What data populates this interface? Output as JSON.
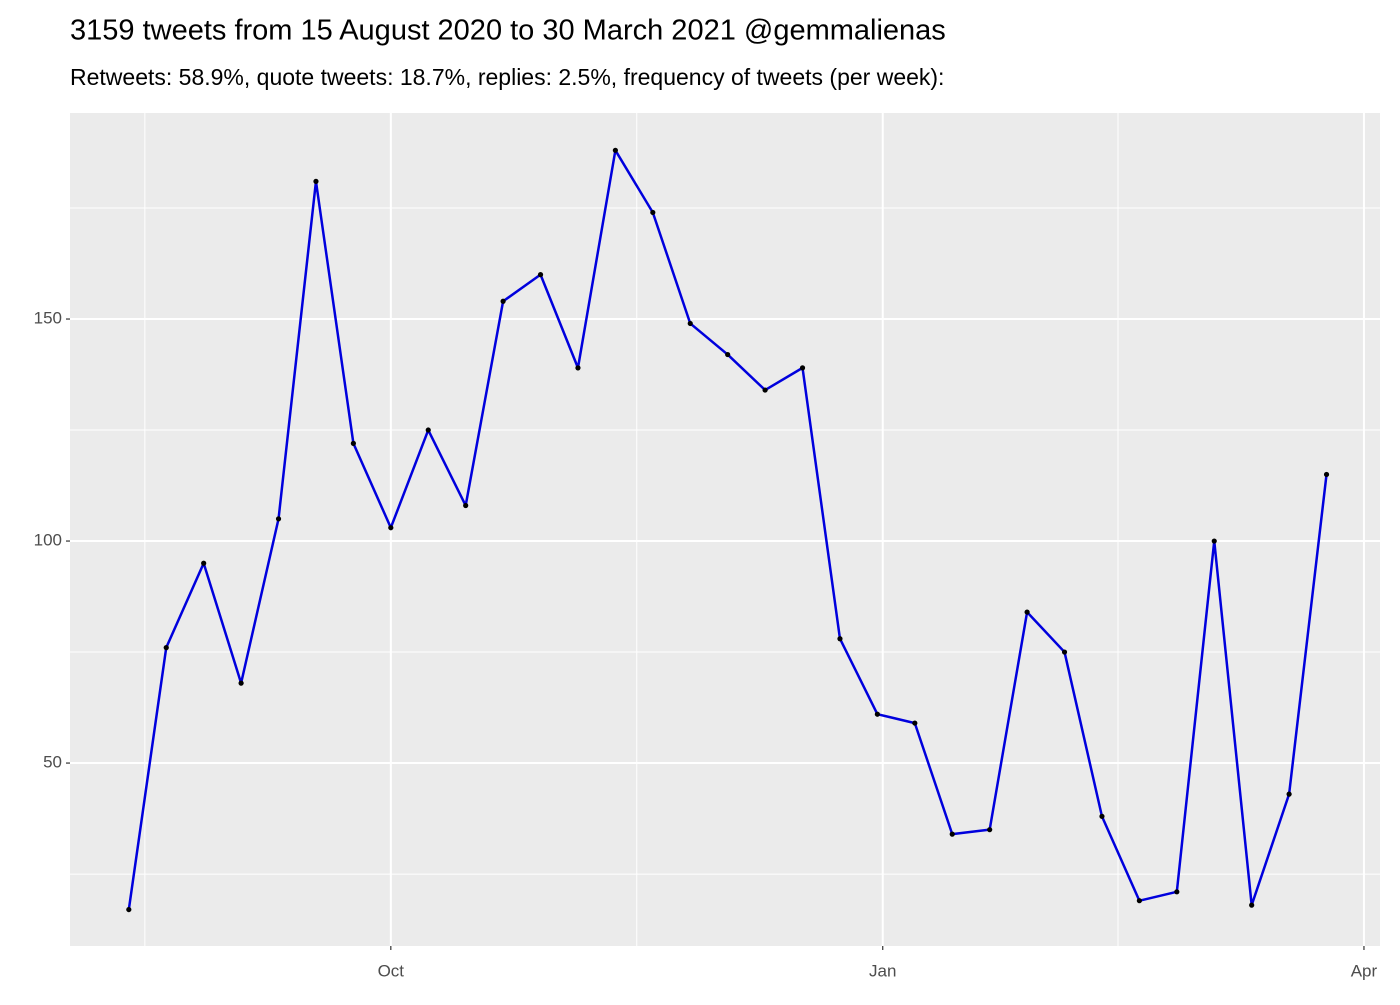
{
  "chart_data": {
    "type": "line",
    "title": "3159 tweets from 15 August 2020 to 30 March 2021 @gemmalienas",
    "subtitle": "Retweets: 58.9%, quote tweets: 18.7%, replies: 2.5%, frequency of tweets (per week):",
    "x": [
      "2020-08-13",
      "2020-08-20",
      "2020-08-27",
      "2020-09-03",
      "2020-09-10",
      "2020-09-17",
      "2020-09-24",
      "2020-10-01",
      "2020-10-08",
      "2020-10-15",
      "2020-10-22",
      "2020-10-29",
      "2020-11-05",
      "2020-11-12",
      "2020-11-19",
      "2020-11-26",
      "2020-12-03",
      "2020-12-10",
      "2020-12-17",
      "2020-12-24",
      "2020-12-31",
      "2021-01-07",
      "2021-01-14",
      "2021-01-21",
      "2021-01-28",
      "2021-02-04",
      "2021-02-11",
      "2021-02-18",
      "2021-02-25",
      "2021-03-04",
      "2021-03-11",
      "2021-03-18",
      "2021-03-25"
    ],
    "series": [
      {
        "color": "#0000dd",
        "point_color": "#000000",
        "values": [
          17,
          76,
          95,
          68,
          105,
          181,
          122,
          103,
          125,
          108,
          154,
          160,
          139,
          188,
          174,
          149,
          142,
          134,
          139,
          78,
          61,
          59,
          34,
          35,
          84,
          75,
          38,
          19,
          21,
          100,
          18,
          43,
          115
        ]
      }
    ],
    "xlim": [
      "2020-08-02",
      "2021-04-04"
    ],
    "xticks": [
      {
        "value": "2020-10-01",
        "label": "Oct"
      },
      {
        "value": "2021-01-01",
        "label": "Jan"
      },
      {
        "value": "2021-04-01",
        "label": "Apr"
      }
    ],
    "minor_xticks": [
      "2020-08-16",
      "2020-11-16",
      "2021-02-14"
    ],
    "ylim": [
      8.8,
      196.4
    ],
    "yticks": [
      50,
      100,
      150
    ],
    "minor_yticks": [
      25,
      75,
      125,
      175
    ],
    "grid": true
  }
}
